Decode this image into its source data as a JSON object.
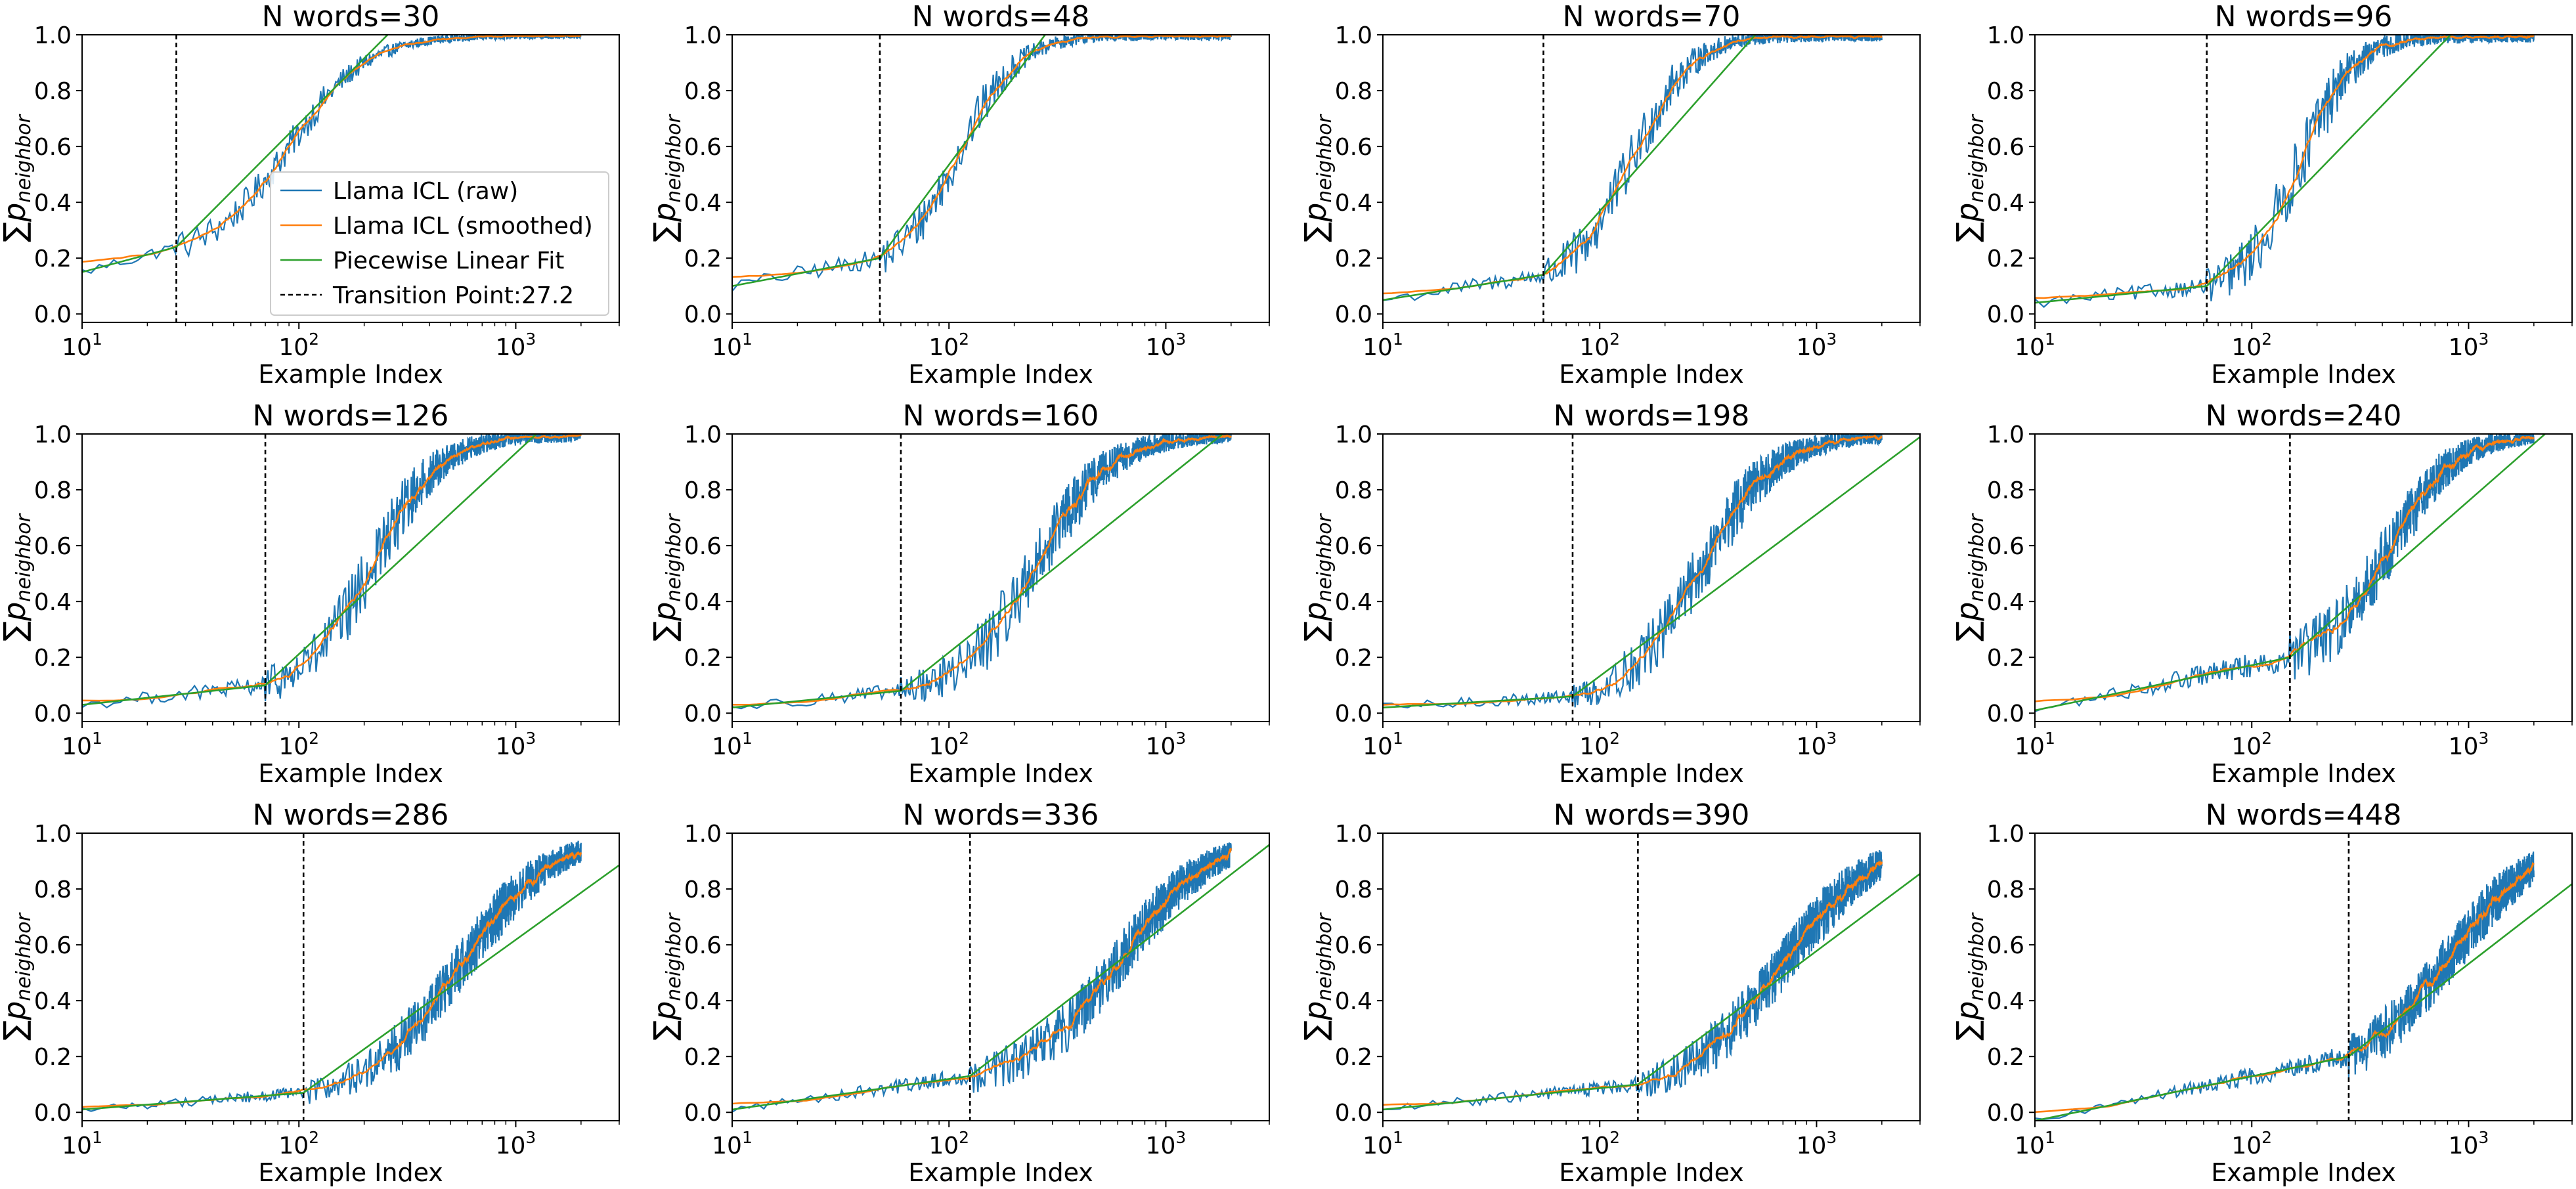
{
  "chart_data": {
    "type": "line",
    "layout": "3x4 grid of subplots",
    "shared": {
      "xlabel": "Example Index",
      "ylabel_symbol": "∑",
      "ylabel_var": "p",
      "ylabel_sub": "neighbor",
      "xscale": "log",
      "xlim": [
        10,
        3000
      ],
      "ylim": [
        -0.03,
        1.0
      ],
      "x_ticks": [
        {
          "value": 10,
          "base": "10",
          "exp": "1"
        },
        {
          "value": 100,
          "base": "10",
          "exp": "2"
        },
        {
          "value": 1000,
          "base": "10",
          "exp": "3"
        }
      ],
      "y_ticks": [
        "0.0",
        "0.2",
        "0.4",
        "0.6",
        "0.8",
        "1.0"
      ],
      "grid": false
    },
    "legend": {
      "location": "lower-right of first subplot",
      "entries": [
        {
          "label": "Llama ICL (raw)",
          "color": "#1f77b4",
          "style": "solid"
        },
        {
          "label": "Llama ICL (smoothed)",
          "color": "#ff7f0e",
          "style": "solid"
        },
        {
          "label": "Piecewise Linear Fit",
          "color": "#2ca02c",
          "style": "solid"
        },
        {
          "label": "Transition Point:27.2",
          "color": "#000000",
          "style": "dashed"
        }
      ]
    },
    "colors": {
      "raw": "#1f77b4",
      "smoothed": "#ff7f0e",
      "fit": "#2ca02c",
      "transition": "#000000"
    },
    "subplots": [
      {
        "title": "N words=30",
        "transition": 27.2,
        "pre_start": 0.15,
        "pre_end": 0.24,
        "mid": 90,
        "width": 0.72,
        "noise": 0.035,
        "x_end": 2000,
        "fit_slope": 0.78
      },
      {
        "title": "N words=48",
        "transition": 48,
        "pre_start": 0.1,
        "pre_end": 0.2,
        "mid": 110,
        "width": 0.55,
        "noise": 0.05,
        "x_end": 2000,
        "fit_slope": 1.05
      },
      {
        "title": "N words=70",
        "transition": 55,
        "pre_start": 0.05,
        "pre_end": 0.14,
        "mid": 140,
        "width": 0.55,
        "noise": 0.06,
        "x_end": 2000,
        "fit_slope": 0.88
      },
      {
        "title": "N words=96",
        "transition": 62,
        "pre_start": 0.04,
        "pre_end": 0.1,
        "mid": 165,
        "width": 0.52,
        "noise": 0.07,
        "x_end": 2000,
        "fit_slope": 0.8
      },
      {
        "title": "N words=126",
        "transition": 70,
        "pre_start": 0.03,
        "pre_end": 0.1,
        "mid": 220,
        "width": 0.62,
        "noise": 0.07,
        "x_end": 2000,
        "fit_slope": 0.72
      },
      {
        "title": "N words=160",
        "transition": 60,
        "pre_start": 0.02,
        "pre_end": 0.08,
        "mid": 250,
        "width": 0.7,
        "noise": 0.07,
        "x_end": 2000,
        "fit_slope": 0.62
      },
      {
        "title": "N words=198",
        "transition": 75,
        "pre_start": 0.02,
        "pre_end": 0.06,
        "mid": 290,
        "width": 0.7,
        "noise": 0.07,
        "x_end": 2000,
        "fit_slope": 0.58
      },
      {
        "title": "N words=240",
        "transition": 150,
        "pre_start": 0.01,
        "pre_end": 0.2,
        "mid": 420,
        "width": 0.62,
        "noise": 0.07,
        "x_end": 2000,
        "fit_slope": 0.68
      },
      {
        "title": "N words=286",
        "transition": 105,
        "pre_start": 0.01,
        "pre_end": 0.07,
        "mid": 550,
        "width": 0.85,
        "noise": 0.06,
        "x_end": 2000,
        "fit_slope": 0.56
      },
      {
        "title": "N words=336",
        "transition": 125,
        "pre_start": 0.01,
        "pre_end": 0.13,
        "mid": 620,
        "width": 0.85,
        "noise": 0.06,
        "x_end": 2000,
        "fit_slope": 0.6
      },
      {
        "title": "N words=390",
        "transition": 150,
        "pre_start": 0.01,
        "pre_end": 0.1,
        "mid": 700,
        "width": 0.9,
        "noise": 0.06,
        "x_end": 2000,
        "fit_slope": 0.58
      },
      {
        "title": "N words=448",
        "transition": 280,
        "pre_start": -0.03,
        "pre_end": 0.2,
        "mid": 820,
        "width": 0.85,
        "noise": 0.06,
        "x_end": 2000,
        "fit_slope": 0.6
      }
    ]
  }
}
